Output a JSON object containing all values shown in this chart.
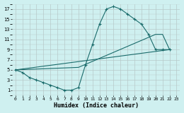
{
  "xlabel": "Humidex (Indice chaleur)",
  "bg_color": "#cff0f0",
  "grid_color": "#b8c8c8",
  "line_color": "#1a6b6b",
  "xlim": [
    -0.5,
    23.5
  ],
  "ylim": [
    0,
    18
  ],
  "xticks": [
    0,
    1,
    2,
    3,
    4,
    5,
    6,
    7,
    8,
    9,
    10,
    11,
    12,
    13,
    14,
    15,
    16,
    17,
    18,
    19,
    20,
    21,
    22,
    23
  ],
  "yticks": [
    1,
    3,
    5,
    7,
    9,
    11,
    13,
    15,
    17
  ],
  "line1_x": [
    0,
    1,
    2,
    3,
    4,
    5,
    6,
    7,
    8,
    9,
    10,
    11,
    12,
    13,
    14,
    15,
    16,
    17,
    18,
    19,
    20,
    21,
    22
  ],
  "line1_y": [
    5,
    4.5,
    3.5,
    3,
    2.5,
    2,
    1.5,
    1,
    1,
    1.5,
    6,
    10,
    14,
    17,
    17.5,
    17,
    16,
    15,
    14,
    12,
    9,
    9,
    9
  ],
  "line2_x": [
    0,
    22
  ],
  "line2_y": [
    5,
    9
  ],
  "line3_x": [
    0,
    9,
    20,
    21,
    22
  ],
  "line3_y": [
    5,
    5.5,
    12,
    12,
    9
  ]
}
